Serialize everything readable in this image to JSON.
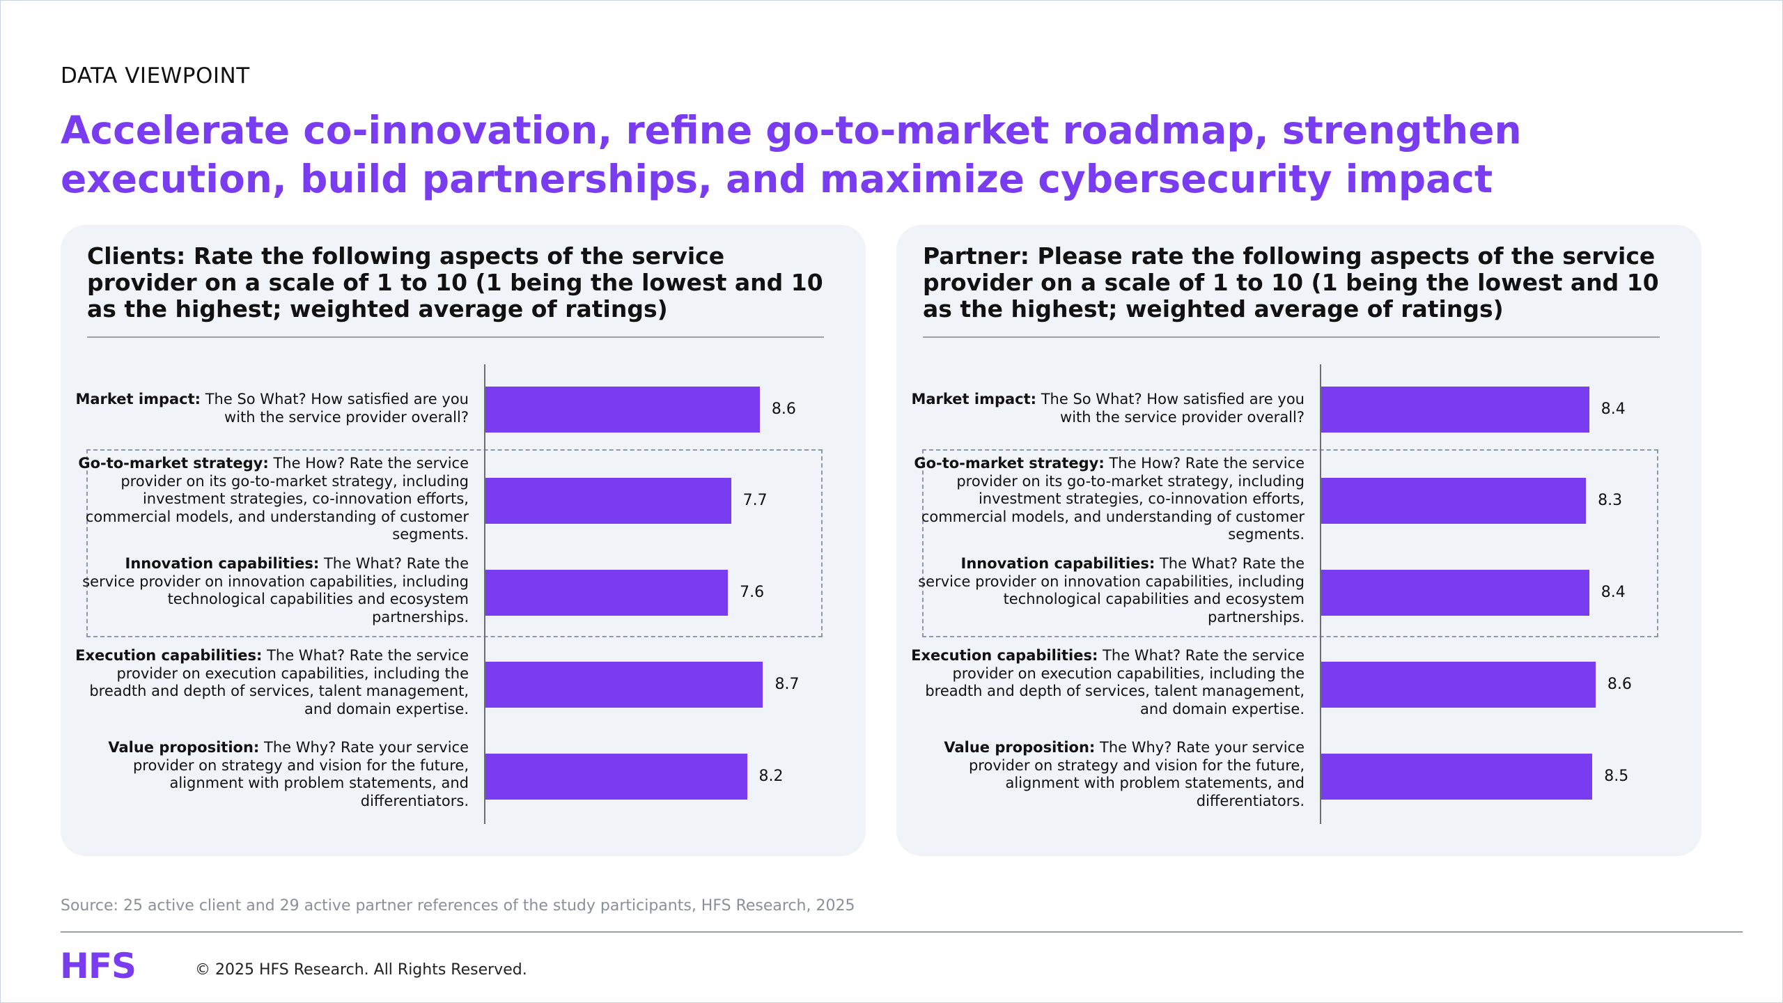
{
  "eyebrow": "DATA VIEWPOINT",
  "headline": "Accelerate co-innovation, refine go-to-market roadmap, strengthen execution, build partnerships, and maximize cybersecurity impact",
  "source": "Source: 25 active client and 29 active partner references of the study participants, HFS Research, 2025",
  "footer": {
    "logo": "HFS",
    "copyright": "© 2025 HFS Research. All Rights Reserved."
  },
  "colors": {
    "accent": "#7a3cf0",
    "bar": "#7a3cf0",
    "panel_bg": "#f0f3f7",
    "dashed_border": "#8b98b0"
  },
  "chart_data": [
    {
      "type": "bar",
      "orientation": "horizontal",
      "title": "Clients: Rate the following aspects of the service provider on a scale of 1 to 10 (1 being the lowest and 10 as the highest; weighted average of ratings)",
      "xlim": [
        0,
        10
      ],
      "grid": false,
      "highlighted_group": [
        "Go-to-market strategy:",
        "Innovation capabilities:"
      ],
      "categories": [
        {
          "label_bold": "Market impact:",
          "label_text": " The So What? How satisfied are you with the service provider overall?"
        },
        {
          "label_bold": "Go-to-market strategy:",
          "label_text": " The How? Rate the service provider on its go-to-market strategy, including investment strategies, co-innovation efforts, commercial models, and understanding of customer segments."
        },
        {
          "label_bold": "Innovation capabilities:",
          "label_text": " The What? Rate the service provider on innovation capabilities, including technological capabilities and ecosystem partnerships."
        },
        {
          "label_bold": "Execution capabilities:",
          "label_text": " The What? Rate the service provider on execution capabilities, including the breadth and depth of services, talent management, and domain expertise."
        },
        {
          "label_bold": "Value proposition:",
          "label_text": " The Why? Rate your service provider on strategy and vision for the future, alignment with problem statements, and differentiators."
        }
      ],
      "values": [
        8.6,
        7.7,
        7.6,
        8.7,
        8.2
      ],
      "value_labels": [
        "8.6",
        "7.7",
        "7.6",
        "8.7",
        "8.2"
      ]
    },
    {
      "type": "bar",
      "orientation": "horizontal",
      "title": "Partner: Please rate the following aspects of the service provider on a scale of 1 to 10 (1 being the lowest and 10 as the highest; weighted average of ratings)",
      "xlim": [
        0,
        10
      ],
      "grid": false,
      "highlighted_group": [
        "Go-to-market strategy:",
        "Innovation capabilities:"
      ],
      "categories": [
        {
          "label_bold": "Market impact:",
          "label_text": " The So What? How satisfied are you with the service provider overall?"
        },
        {
          "label_bold": "Go-to-market strategy:",
          "label_text": " The How? Rate the service provider on its go-to-market strategy, including investment strategies, co-innovation efforts, commercial models, and understanding of customer segments."
        },
        {
          "label_bold": "Innovation capabilities:",
          "label_text": " The What? Rate the service provider on innovation capabilities, including technological capabilities and ecosystem partnerships."
        },
        {
          "label_bold": "Execution capabilities:",
          "label_text": " The What? Rate the service provider on execution capabilities, including the breadth and depth of services, talent management, and domain expertise."
        },
        {
          "label_bold": "Value proposition:",
          "label_text": " The Why? Rate your service provider on strategy and vision for the future, alignment with problem statements, and differentiators."
        }
      ],
      "values": [
        8.4,
        8.3,
        8.4,
        8.6,
        8.5
      ],
      "value_labels": [
        "8.4",
        "8.3",
        "8.4",
        "8.6",
        "8.5"
      ]
    }
  ]
}
